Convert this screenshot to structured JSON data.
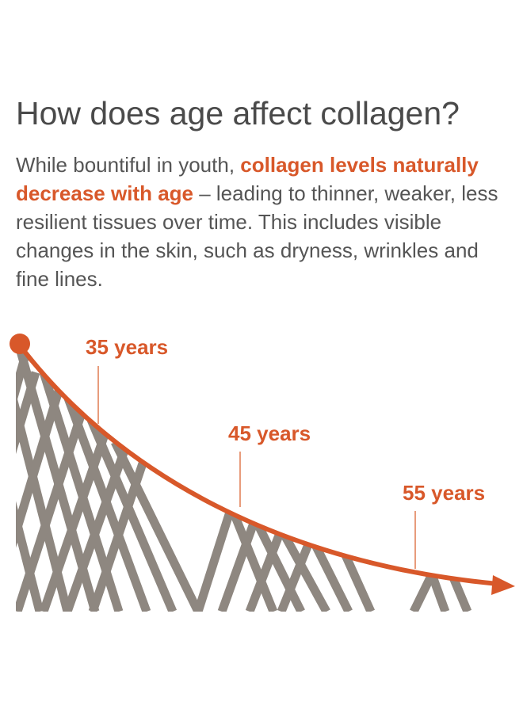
{
  "heading": "How does age affect collagen?",
  "paragraph": {
    "intro": "While bountiful in youth, ",
    "highlight": "collagen levels naturally decrease with age",
    "rest": " – leading to thinner, weaker, less resilient tissues over time. This includes visible changes in the skin, such as dryness, wrinkles and fine lines."
  },
  "milestones": [
    {
      "label": "35 years"
    },
    {
      "label": "45 years"
    },
    {
      "label": "55 years"
    }
  ],
  "colors": {
    "accent": "#d8582a",
    "fiber": "#8e8780",
    "text": "#555555"
  }
}
